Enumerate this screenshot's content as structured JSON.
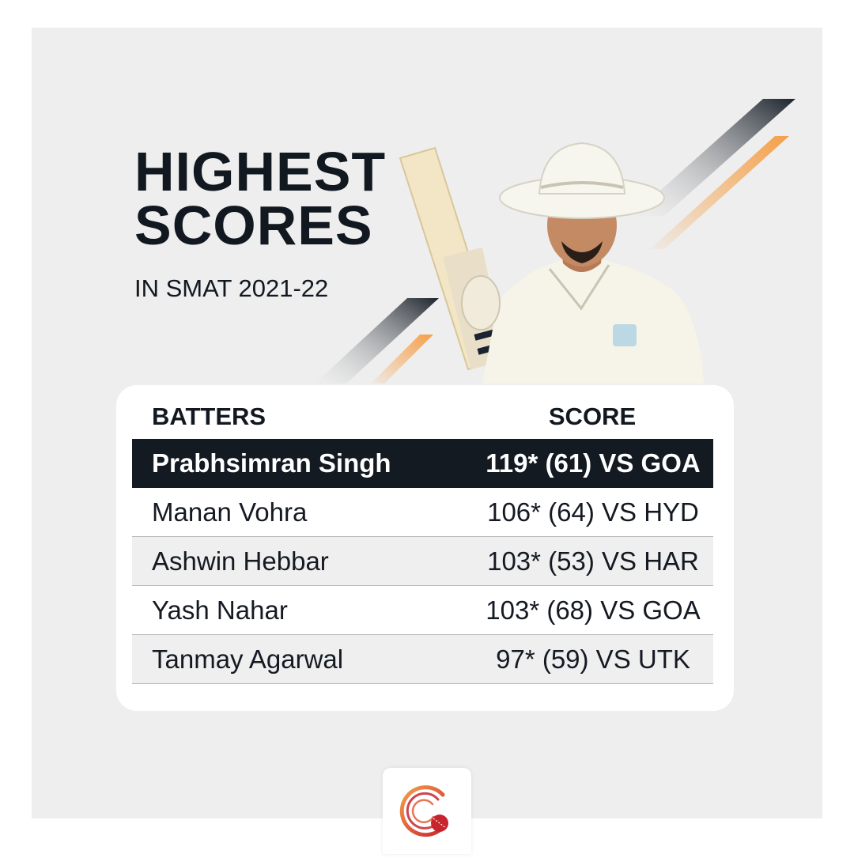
{
  "header": {
    "title_line1": "HIGHEST",
    "title_line2": "SCORES",
    "subtitle": "IN SMAT 2021-22"
  },
  "table": {
    "columns": [
      "BATTERS",
      "SCORE"
    ],
    "rows": [
      {
        "batter": "Prabhsimran Singh",
        "score": "119* (61) VS GOA",
        "highlighted": true
      },
      {
        "batter": "Manan Vohra",
        "score": "106* (64) VS HYD",
        "highlighted": false
      },
      {
        "batter": "Ashwin Hebbar",
        "score": "103* (53) VS HAR",
        "highlighted": false
      },
      {
        "batter": "Yash Nahar",
        "score": "103* (68) VS GOA",
        "highlighted": false
      },
      {
        "batter": "Tanmay Agarwal",
        "score": "97* (59) VS UTK",
        "highlighted": false
      }
    ]
  },
  "colors": {
    "dark": "#121820",
    "accent_orange": "#f5a04a",
    "accent_red": "#c8242e",
    "background": "#eeeeee"
  },
  "icons": {
    "brand_logo": "cricket-ball-logo-icon",
    "player_photo": "batter-photo"
  }
}
